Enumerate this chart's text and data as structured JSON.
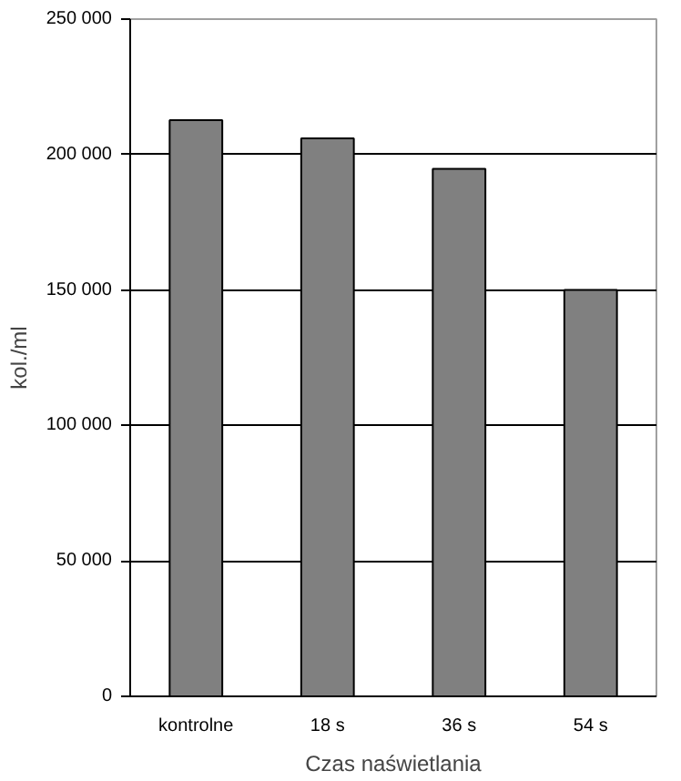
{
  "chart_data": {
    "type": "bar",
    "xlabel": "Czas naświetlania",
    "ylabel": "kol./ml",
    "categories": [
      "kontrolne",
      "18 s",
      "36 s",
      "54 s"
    ],
    "values": [
      212700,
      206000,
      194700,
      150000
    ],
    "color": "#808080",
    "ylim": [
      0,
      250000
    ],
    "yticks": [
      {
        "value": 0,
        "label": "0"
      },
      {
        "value": 50000,
        "label": "50 000"
      },
      {
        "value": 100000,
        "label": "100 000"
      },
      {
        "value": 150000,
        "label": "150 000"
      },
      {
        "value": 200000,
        "label": "200 000"
      },
      {
        "value": 250000,
        "label": "250 000"
      }
    ],
    "grid": "y"
  }
}
